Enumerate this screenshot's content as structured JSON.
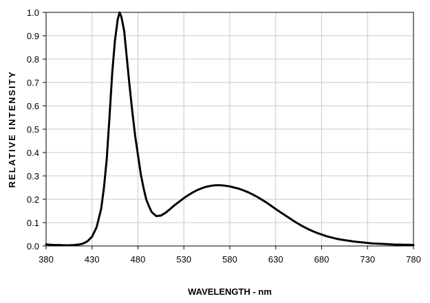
{
  "chart_data": {
    "type": "line",
    "title": "",
    "xlabel": "WAVELENGTH - nm",
    "ylabel": "RELATIVE INTENSITY",
    "xlim": [
      380,
      780
    ],
    "ylim": [
      0,
      1
    ],
    "x_ticks": [
      "380",
      "430",
      "480",
      "530",
      "580",
      "630",
      "680",
      "730",
      "780"
    ],
    "y_ticks": [
      "0.0",
      "0.1",
      "0.2",
      "0.3",
      "0.4",
      "0.5",
      "0.6",
      "0.7",
      "0.8",
      "0.9",
      "1.0"
    ],
    "grid": true,
    "legend": "none",
    "line_color": "#000000",
    "grid_color": "#c8c8c8",
    "series": [
      {
        "x": [
          380,
          385,
          390,
          395,
          400,
          405,
          410,
          415,
          420,
          425,
          430,
          435,
          440,
          443,
          446,
          449,
          452,
          455,
          458,
          460,
          462,
          465,
          468,
          471,
          474,
          477,
          480,
          483,
          486,
          489,
          492,
          495,
          500,
          505,
          510,
          515,
          520,
          525,
          530,
          535,
          540,
          545,
          550,
          555,
          560,
          565,
          570,
          575,
          580,
          585,
          590,
          595,
          600,
          605,
          610,
          615,
          620,
          625,
          630,
          635,
          640,
          645,
          650,
          655,
          660,
          665,
          670,
          675,
          680,
          685,
          690,
          695,
          700,
          705,
          710,
          715,
          720,
          725,
          730,
          735,
          740,
          745,
          750,
          755,
          760,
          765,
          770,
          775,
          780
        ],
        "values": [
          0.007,
          0.005,
          0.004,
          0.004,
          0.003,
          0.003,
          0.004,
          0.006,
          0.01,
          0.02,
          0.04,
          0.08,
          0.16,
          0.25,
          0.37,
          0.55,
          0.74,
          0.88,
          0.97,
          1.0,
          0.98,
          0.92,
          0.8,
          0.68,
          0.57,
          0.47,
          0.39,
          0.31,
          0.25,
          0.2,
          0.17,
          0.145,
          0.128,
          0.13,
          0.142,
          0.158,
          0.175,
          0.19,
          0.205,
          0.218,
          0.23,
          0.24,
          0.248,
          0.254,
          0.258,
          0.26,
          0.26,
          0.258,
          0.255,
          0.25,
          0.245,
          0.238,
          0.23,
          0.22,
          0.21,
          0.198,
          0.186,
          0.172,
          0.158,
          0.145,
          0.132,
          0.119,
          0.106,
          0.094,
          0.083,
          0.073,
          0.064,
          0.056,
          0.049,
          0.042,
          0.037,
          0.032,
          0.028,
          0.025,
          0.022,
          0.019,
          0.017,
          0.015,
          0.013,
          0.011,
          0.01,
          0.009,
          0.008,
          0.007,
          0.006,
          0.006,
          0.005,
          0.005,
          0.004
        ]
      }
    ]
  }
}
